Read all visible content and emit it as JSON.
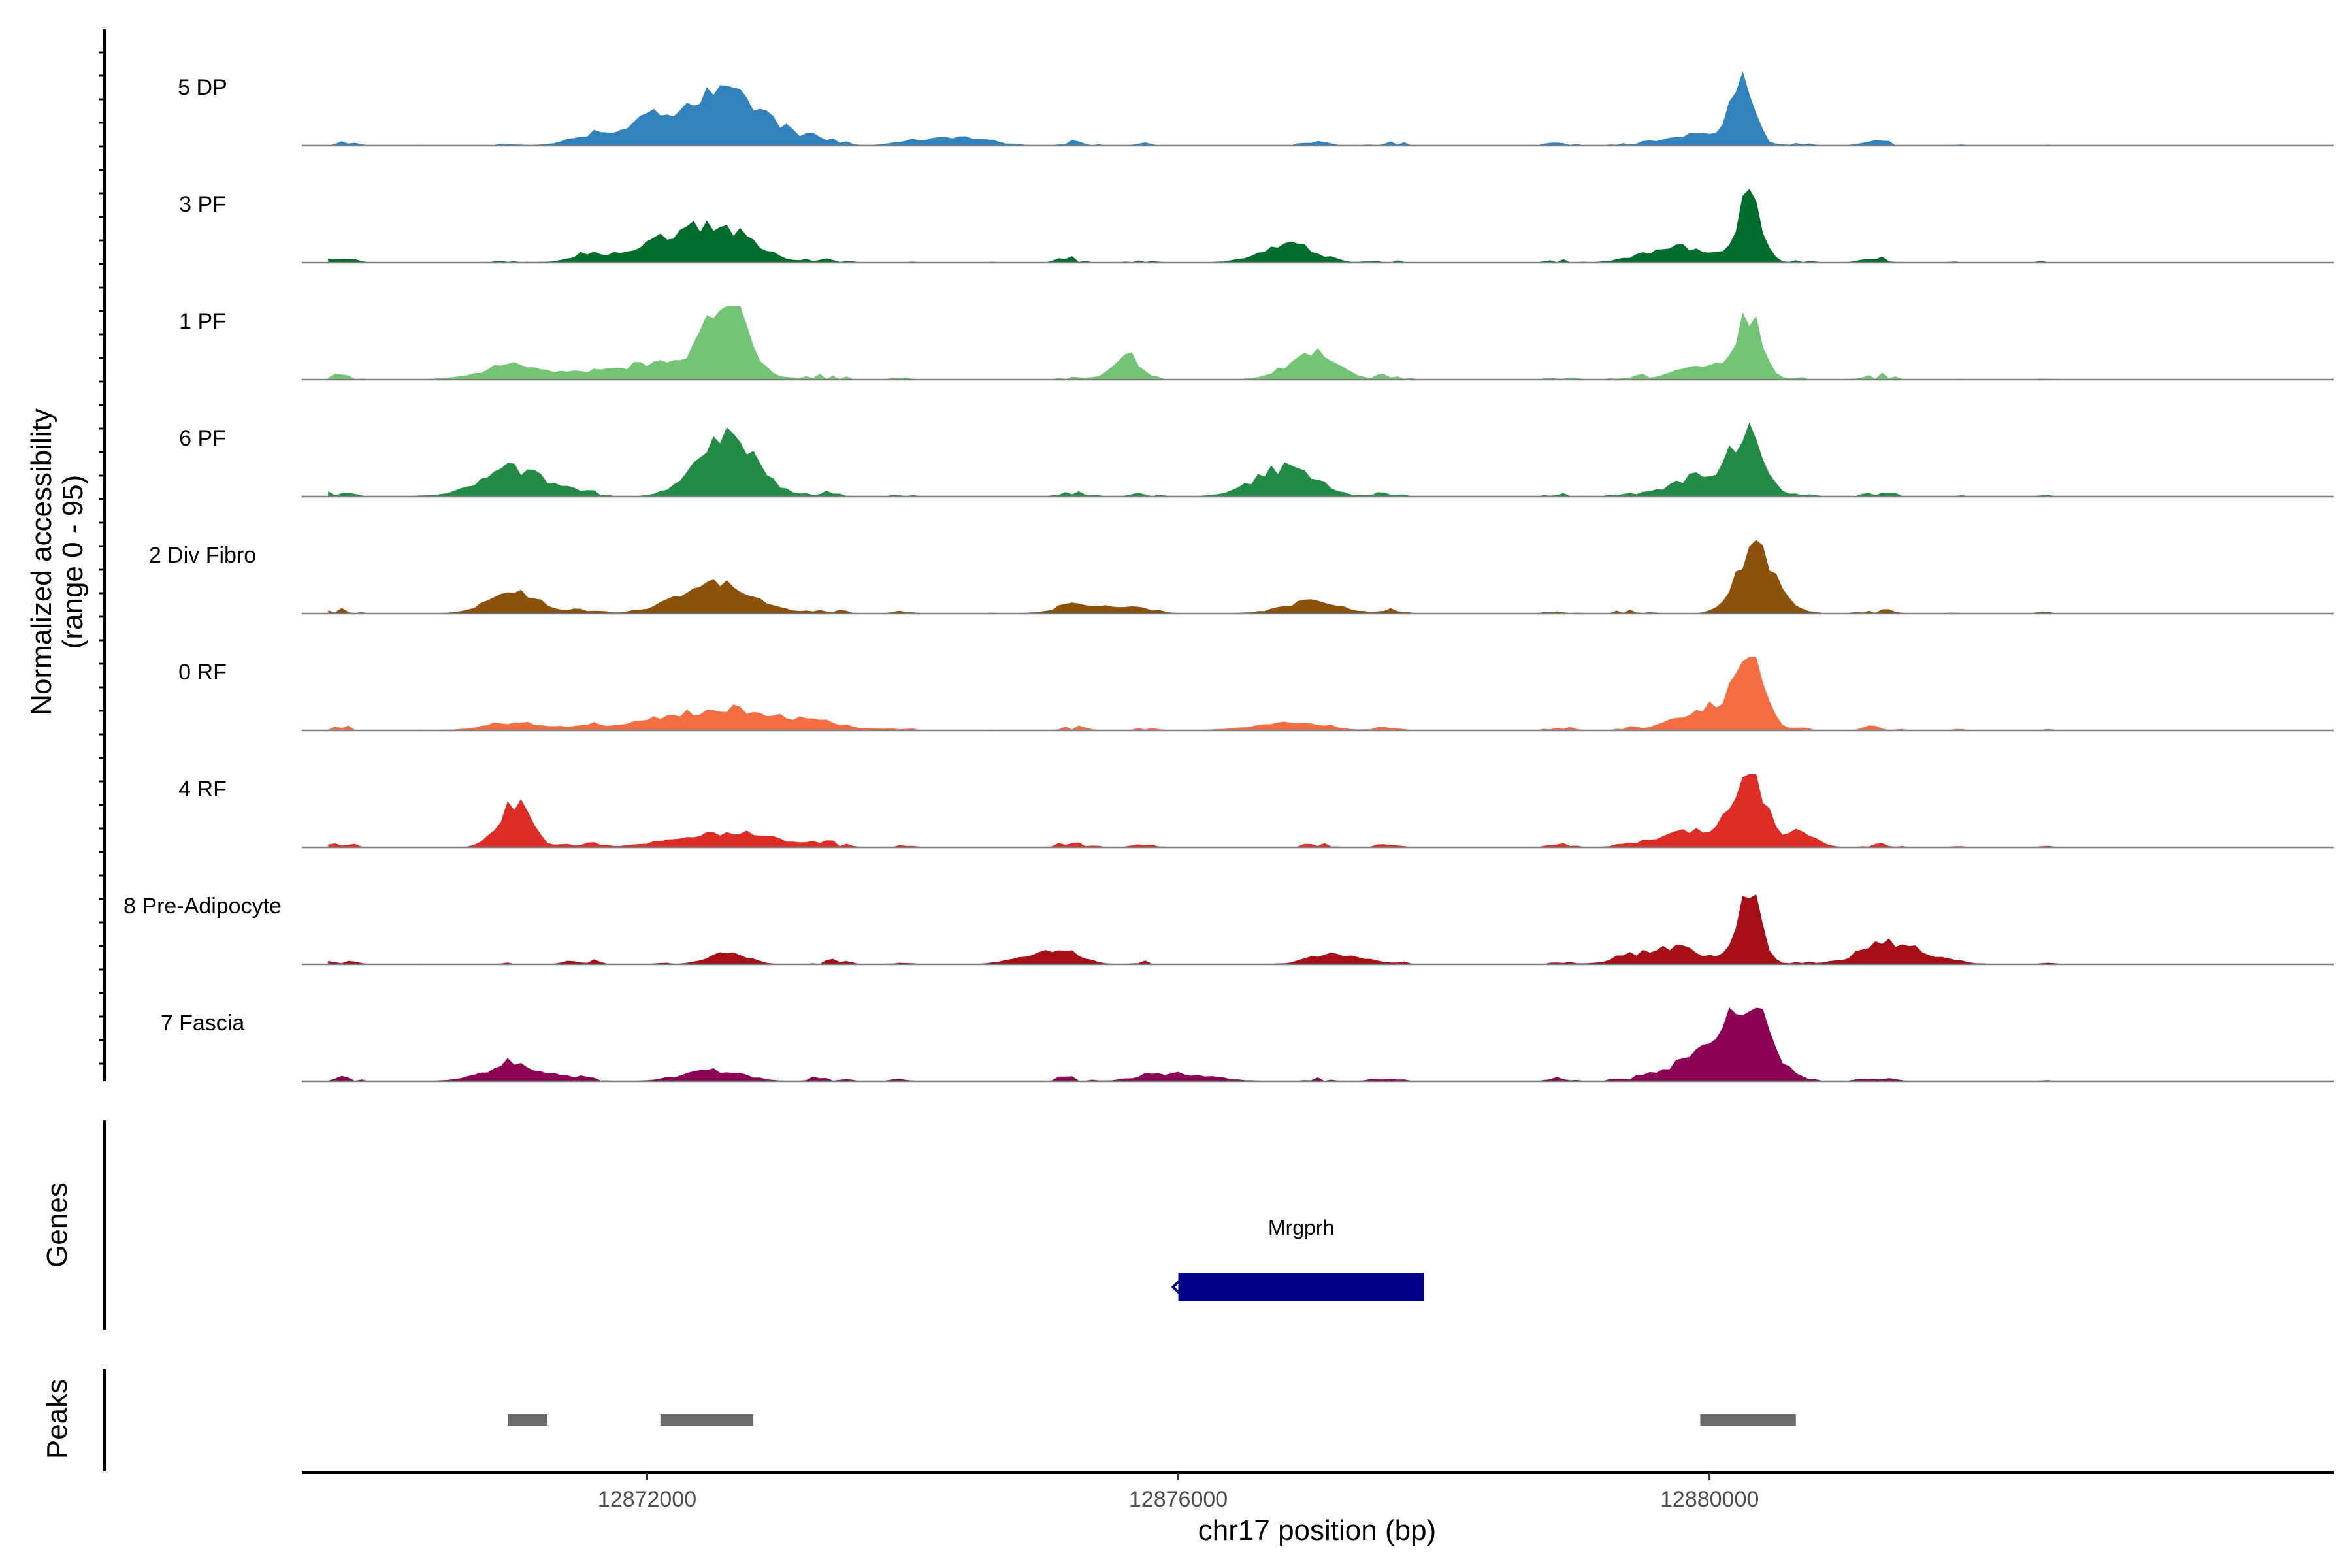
{
  "chart_data": {
    "type": "area",
    "title": "",
    "ylabel_line1": "Normalized accessibility",
    "ylabel_line2": "(range 0 - 95)",
    "ylim": [
      0,
      95
    ],
    "xlabel": "chr17 position (bp)",
    "xlim": [
      12869400,
      12884700
    ],
    "x_ticks": [
      12872000,
      12876000,
      12880000
    ],
    "x_tick_labels": [
      "12872000",
      "12876000",
      "12880000"
    ],
    "bin_bp": 50,
    "tracks": [
      {
        "name": "5 DP",
        "color": "#3182bd",
        "peaks": [
          [
            12872600,
            62,
            1200
          ],
          [
            12872000,
            25,
            1200
          ],
          [
            12874300,
            12,
            900
          ],
          [
            12880250,
            95,
            280
          ],
          [
            12880000,
            18,
            900
          ]
        ]
      },
      {
        "name": "3 PF",
        "color": "#006d2c",
        "peaks": [
          [
            12872500,
            42,
            1000
          ],
          [
            12872100,
            18,
            1300
          ],
          [
            12876800,
            24,
            700
          ],
          [
            12879800,
            20,
            900
          ],
          [
            12880300,
            90,
            320
          ]
        ]
      },
      {
        "name": "1 PF",
        "color": "#74c476",
        "peaks": [
          [
            12872600,
            95,
            500
          ],
          [
            12872200,
            25,
            1500
          ],
          [
            12871000,
            18,
            900
          ],
          [
            12875600,
            30,
            350
          ],
          [
            12877000,
            30,
            700
          ],
          [
            12880300,
            75,
            350
          ],
          [
            12880000,
            20,
            800
          ]
        ]
      },
      {
        "name": "6 PF",
        "color": "#238b45",
        "peaks": [
          [
            12872600,
            75,
            800
          ],
          [
            12871000,
            35,
            900
          ],
          [
            12876800,
            38,
            800
          ],
          [
            12880300,
            80,
            400
          ],
          [
            12880000,
            30,
            900
          ]
        ]
      },
      {
        "name": "2 Div Fibro",
        "color": "#8c510a",
        "peaks": [
          [
            12872500,
            40,
            1000
          ],
          [
            12871000,
            28,
            700
          ],
          [
            12880350,
            92,
            500
          ],
          [
            12877000,
            14,
            800
          ],
          [
            12875400,
            10,
            900
          ]
        ]
      },
      {
        "name": "0 RF",
        "color": "#f46d43",
        "peaks": [
          [
            12872600,
            28,
            1800
          ],
          [
            12871000,
            10,
            800
          ],
          [
            12880300,
            95,
            380
          ],
          [
            12880000,
            32,
            800
          ],
          [
            12876800,
            10,
            900
          ]
        ]
      },
      {
        "name": "4 RF",
        "color": "#de2d26",
        "peaks": [
          [
            12871000,
            55,
            450
          ],
          [
            12872600,
            20,
            1300
          ],
          [
            12880300,
            95,
            420
          ],
          [
            12879900,
            22,
            900
          ],
          [
            12880700,
            18,
            400
          ]
        ]
      },
      {
        "name": "8 Pre-Adipocyte",
        "color": "#a50f15",
        "peaks": [
          [
            12880300,
            90,
            320
          ],
          [
            12872600,
            18,
            500
          ],
          [
            12879700,
            22,
            900
          ],
          [
            12881400,
            25,
            900
          ],
          [
            12877200,
            12,
            700
          ],
          [
            12875000,
            15,
            700
          ]
        ]
      },
      {
        "name": "7 Fascia",
        "color": "#8b0054",
        "peaks": [
          [
            12880300,
            95,
            560
          ],
          [
            12880000,
            40,
            900
          ],
          [
            12871000,
            22,
            800
          ],
          [
            12872500,
            14,
            800
          ],
          [
            12876000,
            10,
            900
          ]
        ]
      }
    ],
    "genes_label": "Genes",
    "genes": [
      {
        "name": "Mrgprh",
        "start": 12876000,
        "end": 12877850,
        "strand": "-",
        "color": "#00008b"
      }
    ],
    "peaks_label": "Peaks",
    "peak_regions": [
      {
        "start": 12870950,
        "end": 12871250
      },
      {
        "start": 12872100,
        "end": 12872800
      },
      {
        "start": 12879930,
        "end": 12880650
      }
    ],
    "peak_color": "#6b6b6b"
  }
}
